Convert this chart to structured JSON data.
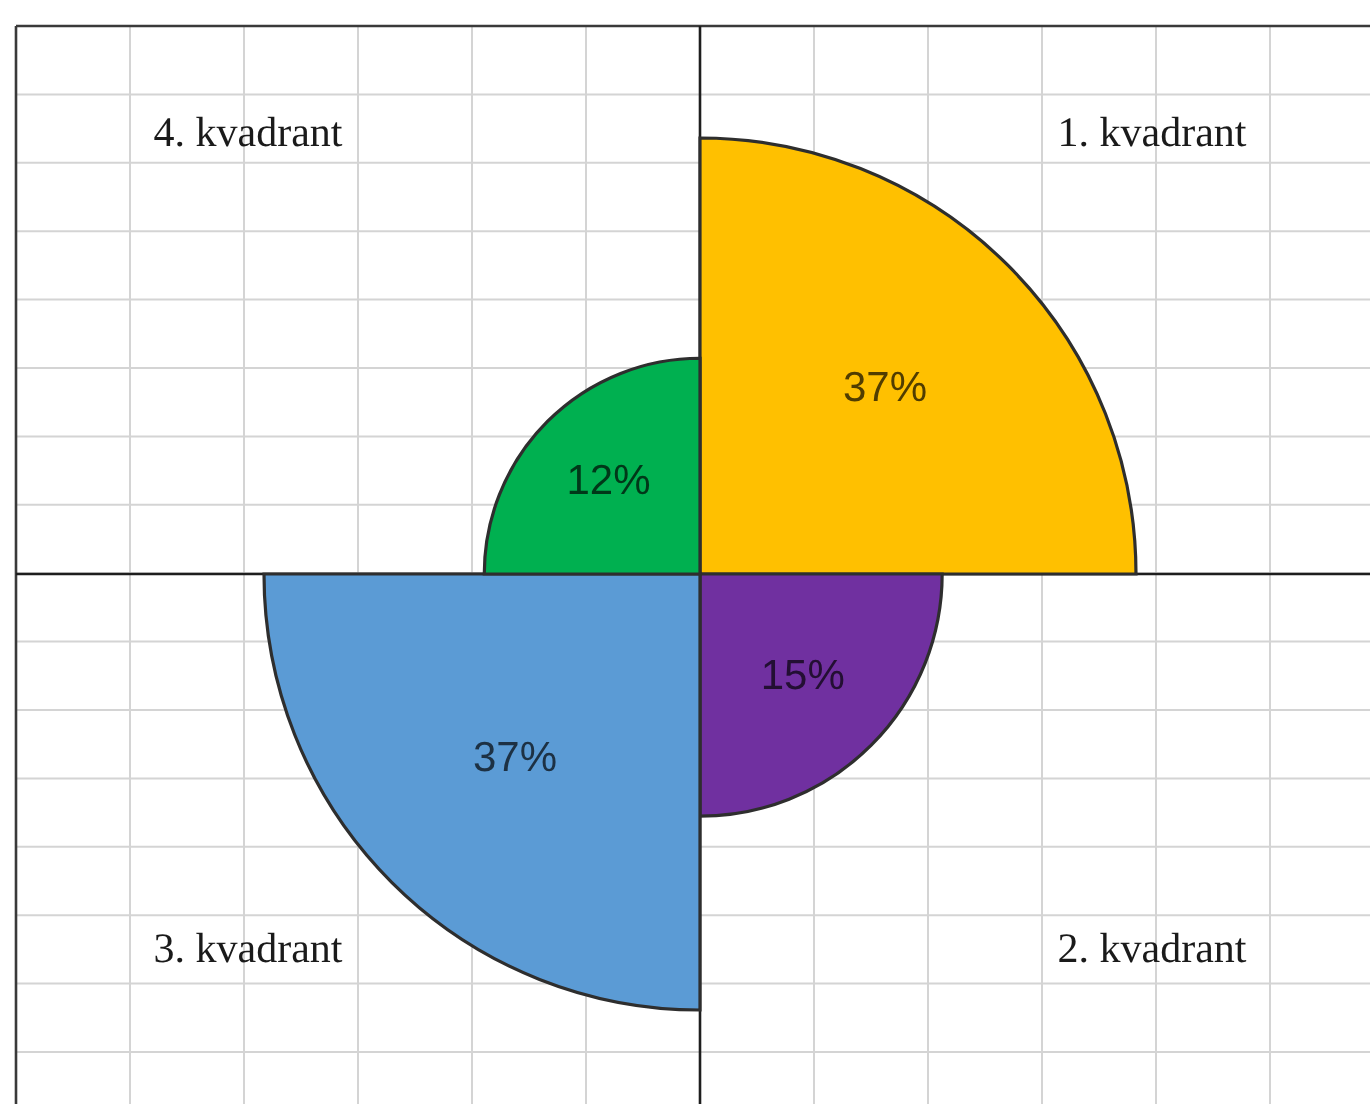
{
  "chart_data": {
    "type": "other",
    "categories": [
      "1. kvadrant",
      "2. kvadrant",
      "3. kvadrant",
      "4. kvadrant"
    ],
    "values": [
      37,
      15,
      37,
      12
    ],
    "colors": [
      "#ffc000",
      "#7030a0",
      "#5b9bd5",
      "#00b050"
    ],
    "value_labels": [
      "37%",
      "15%",
      "37%",
      "12%"
    ]
  }
}
